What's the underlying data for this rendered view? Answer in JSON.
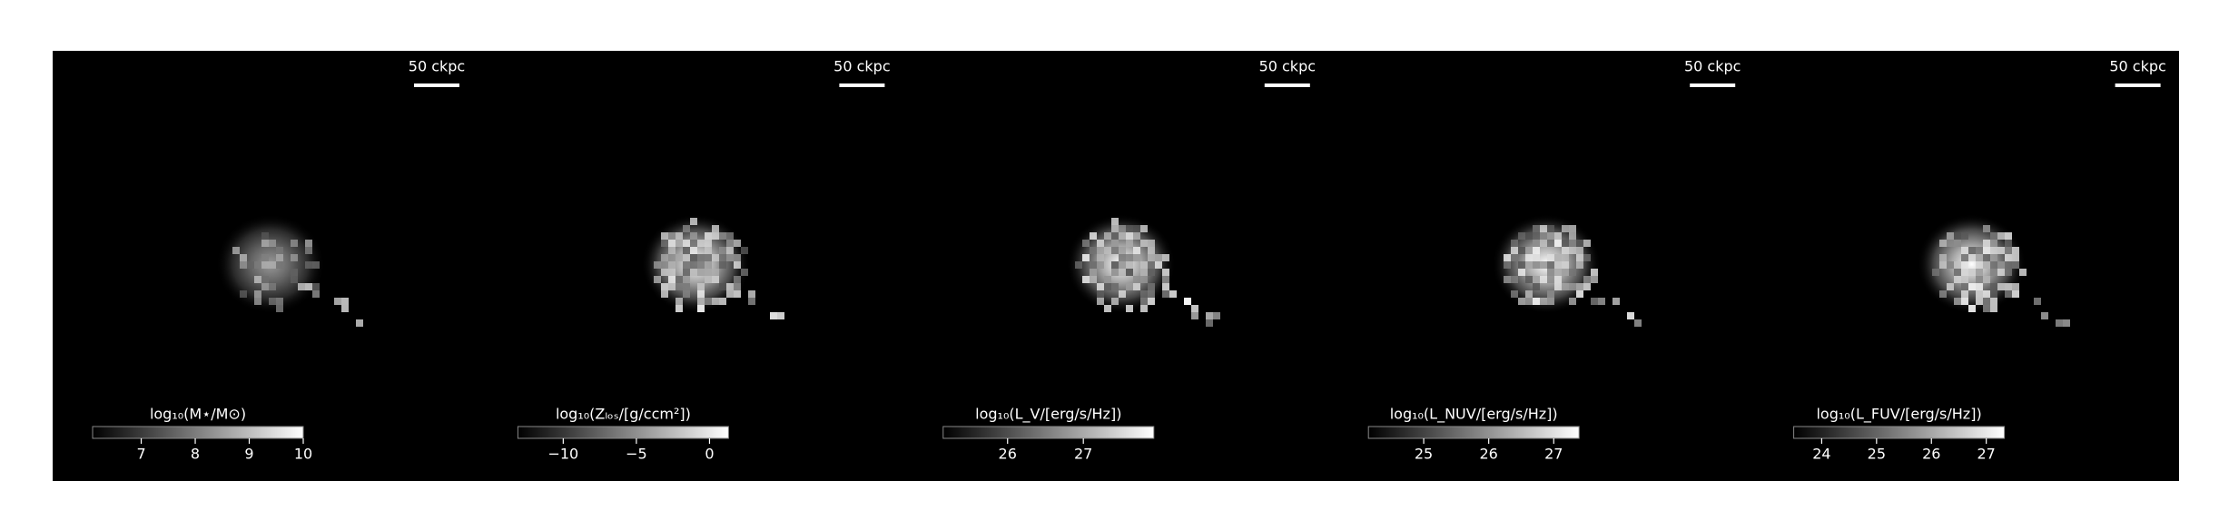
{
  "chart_data": [
    {
      "type": "image",
      "scalebar": "50 ckpc",
      "colorbar_label": "log₁₀(M⋆/M⊙)",
      "clim": [
        6.1,
        10
      ],
      "cticks": [
        7,
        8,
        9,
        10
      ],
      "colormap": "gray"
    },
    {
      "type": "image",
      "scalebar": "50 ckpc",
      "colorbar_label": "log₁₀(Zₗₒₛ/[g/ccm²])",
      "clim": [
        -13.1,
        1.3
      ],
      "cticks": [
        {
          "value": -10,
          "label": "−10"
        },
        {
          "value": -5,
          "label": "−5"
        },
        0
      ],
      "colormap": "gray"
    },
    {
      "type": "image",
      "scalebar": "50 ckpc",
      "colorbar_label": "log₁₀(L_V/[erg/s/Hz])",
      "clim": [
        25.15,
        27.93
      ],
      "cticks": [
        26,
        27
      ],
      "colormap": "gray"
    },
    {
      "type": "image",
      "scalebar": "50 ckpc",
      "colorbar_label": "log₁₀(L_NUV/[erg/s/Hz])",
      "clim": [
        24.15,
        27.39
      ],
      "cticks": [
        25,
        26,
        27
      ],
      "colormap": "gray"
    },
    {
      "type": "image",
      "scalebar": "50 ckpc",
      "colorbar_label": "log₁₀(L_FUV/[erg/s/Hz])",
      "clim": [
        23.49,
        27.33
      ],
      "cticks": [
        24,
        25,
        26,
        27
      ],
      "colormap": "gray"
    }
  ]
}
